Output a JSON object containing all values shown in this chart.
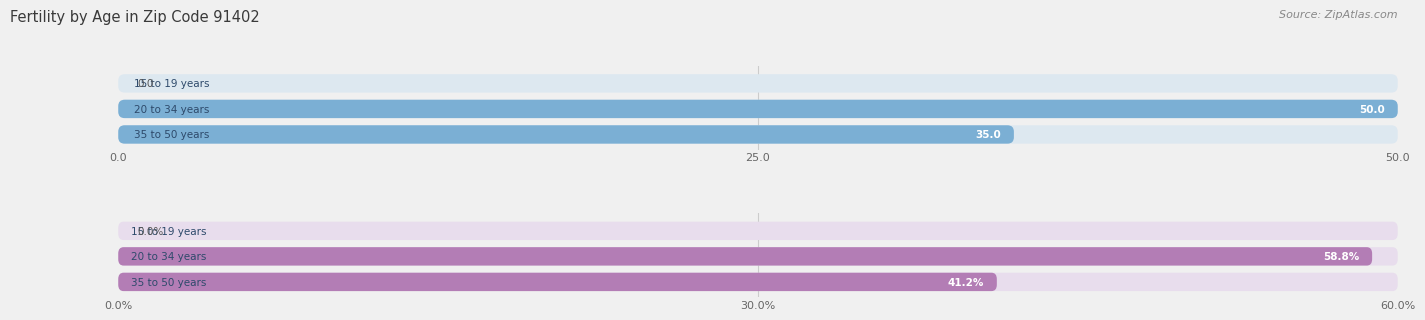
{
  "title": "Fertility by Age in Zip Code 91402",
  "source": "Source: ZipAtlas.com",
  "chart1": {
    "categories": [
      "15 to 19 years",
      "20 to 34 years",
      "35 to 50 years"
    ],
    "values": [
      0.0,
      50.0,
      35.0
    ],
    "value_labels": [
      "0.0",
      "50.0",
      "35.0"
    ],
    "xlim": [
      0,
      50
    ],
    "xticks": [
      0.0,
      25.0,
      50.0
    ],
    "xtick_labels": [
      "0.0",
      "25.0",
      "50.0"
    ],
    "bar_color": "#7bafd4",
    "bg_color": "#dde8f0",
    "label_inside_color": "#ffffff",
    "label_outside_color": "#555555"
  },
  "chart2": {
    "categories": [
      "15 to 19 years",
      "20 to 34 years",
      "35 to 50 years"
    ],
    "values": [
      0.0,
      58.8,
      41.2
    ],
    "value_labels": [
      "0.0%",
      "58.8%",
      "41.2%"
    ],
    "xlim": [
      0,
      60
    ],
    "xticks": [
      0.0,
      30.0,
      60.0
    ],
    "xtick_labels": [
      "0.0%",
      "30.0%",
      "60.0%"
    ],
    "bar_color": "#b37db5",
    "bg_color": "#e8dded",
    "label_inside_color": "#ffffff",
    "label_outside_color": "#555555"
  },
  "title_color": "#3a3a3a",
  "source_color": "#888888",
  "category_label_color": "#2e4a6b",
  "fig_bg_color": "#f0f0f0",
  "grid_color": "#cccccc"
}
